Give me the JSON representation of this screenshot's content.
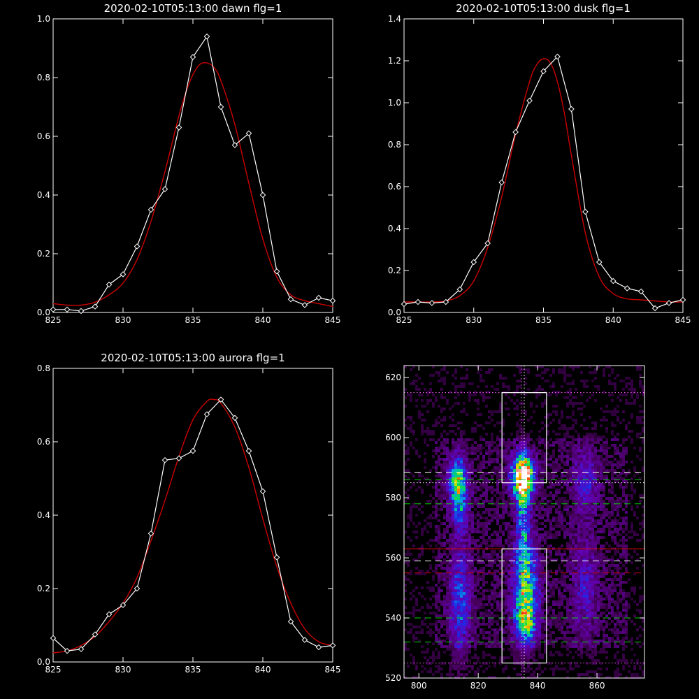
{
  "chart_data": [
    {
      "type": "line",
      "title": "2020-02-10T05:13:00 dawn flg=1",
      "xlim": [
        825,
        845
      ],
      "ylim": [
        0,
        1.0
      ],
      "xticks": [
        "825",
        "830",
        "835",
        "840",
        "845"
      ],
      "yticks": [
        "0.0",
        "0.2",
        "0.4",
        "0.6",
        "0.8",
        "1.0"
      ],
      "series": [
        {
          "color": "#ffffff",
          "marker": "diamond",
          "x": [
            825,
            826,
            827,
            828,
            829,
            830,
            831,
            832,
            833,
            834,
            835,
            836,
            837,
            838,
            839,
            840,
            841,
            842,
            843,
            844,
            845
          ],
          "y": [
            0.01,
            0.01,
            0.005,
            0.02,
            0.095,
            0.13,
            0.225,
            0.35,
            0.42,
            0.63,
            0.87,
            0.94,
            0.7,
            0.57,
            0.61,
            0.4,
            0.14,
            0.045,
            0.025,
            0.05,
            0.04
          ]
        },
        {
          "color": "#cc0000",
          "marker": "none",
          "smooth": true,
          "x": [
            825,
            826,
            827,
            828,
            829,
            830,
            831,
            832,
            833,
            834,
            834.5,
            835,
            835.5,
            836,
            836.5,
            837,
            838,
            839,
            840,
            841,
            842,
            843,
            844,
            845
          ],
          "y": [
            0.03,
            0.025,
            0.025,
            0.035,
            0.06,
            0.1,
            0.18,
            0.31,
            0.48,
            0.67,
            0.75,
            0.81,
            0.845,
            0.85,
            0.835,
            0.79,
            0.64,
            0.44,
            0.25,
            0.12,
            0.06,
            0.04,
            0.03,
            0.02
          ]
        }
      ]
    },
    {
      "type": "line",
      "title": "2020-02-10T05:13:00 dusk flg=1",
      "xlim": [
        825,
        845
      ],
      "ylim": [
        0,
        1.4
      ],
      "xticks": [
        "825",
        "830",
        "835",
        "840",
        "845"
      ],
      "yticks": [
        "0.0",
        "0.2",
        "0.4",
        "0.6",
        "0.8",
        "1.0",
        "1.2",
        "1.4"
      ],
      "series": [
        {
          "color": "#ffffff",
          "marker": "diamond",
          "x": [
            825,
            826,
            827,
            828,
            829,
            830,
            831,
            832,
            833,
            834,
            835,
            836,
            837,
            838,
            839,
            840,
            841,
            842,
            843,
            844,
            845
          ],
          "y": [
            0.04,
            0.05,
            0.045,
            0.05,
            0.11,
            0.24,
            0.33,
            0.62,
            0.86,
            1.01,
            1.15,
            1.22,
            0.97,
            0.48,
            0.24,
            0.15,
            0.115,
            0.1,
            0.02,
            0.045,
            0.06
          ]
        },
        {
          "color": "#cc0000",
          "marker": "none",
          "smooth": true,
          "x": [
            825,
            826,
            827,
            828,
            829,
            830,
            831,
            832,
            833,
            834,
            834.5,
            835,
            835.5,
            836,
            836.5,
            837,
            838,
            839,
            840,
            841,
            842,
            843,
            844,
            845
          ],
          "y": [
            0.05,
            0.05,
            0.05,
            0.055,
            0.08,
            0.15,
            0.31,
            0.55,
            0.85,
            1.1,
            1.18,
            1.21,
            1.19,
            1.1,
            0.95,
            0.75,
            0.38,
            0.17,
            0.09,
            0.065,
            0.06,
            0.055,
            0.05,
            0.05
          ]
        }
      ]
    },
    {
      "type": "line",
      "title": "2020-02-10T05:13:00 aurora flg=1",
      "xlim": [
        825,
        845
      ],
      "ylim": [
        0,
        0.8
      ],
      "xticks": [
        "825",
        "830",
        "835",
        "840",
        "845"
      ],
      "yticks": [
        "0.0",
        "0.2",
        "0.4",
        "0.6",
        "0.8"
      ],
      "series": [
        {
          "color": "#ffffff",
          "marker": "diamond",
          "x": [
            825,
            826,
            827,
            828,
            829,
            830,
            831,
            832,
            833,
            834,
            835,
            836,
            837,
            838,
            839,
            840,
            841,
            842,
            843,
            844,
            845
          ],
          "y": [
            0.065,
            0.03,
            0.035,
            0.075,
            0.13,
            0.155,
            0.2,
            0.35,
            0.55,
            0.555,
            0.575,
            0.675,
            0.715,
            0.665,
            0.575,
            0.465,
            0.285,
            0.11,
            0.06,
            0.04,
            0.045
          ]
        },
        {
          "color": "#cc0000",
          "marker": "none",
          "smooth": true,
          "x": [
            825,
            826,
            827,
            828,
            829,
            830,
            831,
            832,
            833,
            834,
            835,
            836,
            836.5,
            837,
            838,
            839,
            840,
            841,
            842,
            843,
            844,
            845
          ],
          "y": [
            0.025,
            0.03,
            0.045,
            0.07,
            0.11,
            0.16,
            0.23,
            0.33,
            0.44,
            0.56,
            0.66,
            0.71,
            0.715,
            0.705,
            0.64,
            0.53,
            0.39,
            0.26,
            0.16,
            0.09,
            0.055,
            0.045
          ]
        }
      ]
    },
    {
      "type": "heatmap",
      "title": "",
      "xlim": [
        795,
        876
      ],
      "ylim": [
        520,
        624
      ],
      "xticks": [
        "800",
        "820",
        "840",
        "860"
      ],
      "yticks": [
        "520",
        "540",
        "560",
        "580",
        "600",
        "620"
      ],
      "colormap": "rainbow (black-purple-blue-green-yellow-red-white)",
      "blobs": [
        {
          "x": 813,
          "y": 586,
          "sx": 2.2,
          "sy": 5.5,
          "v": 0.55
        },
        {
          "x": 814,
          "y": 576,
          "sx": 2.0,
          "sy": 6.0,
          "v": 0.3
        },
        {
          "x": 814,
          "y": 545,
          "sx": 2.5,
          "sy": 12.0,
          "v": 0.35
        },
        {
          "x": 835,
          "y": 587,
          "sx": 2.5,
          "sy": 5.0,
          "v": 1.0
        },
        {
          "x": 835,
          "y": 574,
          "sx": 1.5,
          "sy": 10.0,
          "v": 0.35
        },
        {
          "x": 836,
          "y": 550,
          "sx": 2.8,
          "sy": 11.0,
          "v": 0.6
        },
        {
          "x": 836,
          "y": 538,
          "sx": 2.5,
          "sy": 4.5,
          "v": 0.35
        },
        {
          "x": 856,
          "y": 586,
          "sx": 3.0,
          "sy": 7.0,
          "v": 0.25
        },
        {
          "x": 856,
          "y": 550,
          "sx": 3.0,
          "sy": 12.0,
          "v": 0.22
        }
      ],
      "boxes": [
        {
          "x0": 828,
          "x1": 843,
          "y0": 585,
          "y1": 615,
          "color": "#ffffff"
        },
        {
          "x0": 828,
          "x1": 843,
          "y0": 525,
          "y1": 563,
          "color": "#ffffff"
        }
      ],
      "hlines": [
        {
          "y": 615,
          "color": "#ff66ff",
          "style": "dotted"
        },
        {
          "y": 588.5,
          "color": "#ffffff",
          "style": "dashed"
        },
        {
          "y": 586,
          "color": "#00cc00",
          "style": "dashed"
        },
        {
          "y": 585,
          "color": "#ffffff",
          "style": "dotted"
        },
        {
          "y": 578,
          "color": "#00cc00",
          "style": "dashed"
        },
        {
          "y": 563,
          "color": "#ff66ff",
          "style": "dotted"
        },
        {
          "y": 563,
          "color": "#cc0000",
          "style": "solid"
        },
        {
          "y": 559,
          "color": "#ffffff",
          "style": "dashed"
        },
        {
          "y": 555,
          "color": "#cc0000",
          "style": "dashed"
        },
        {
          "y": 540,
          "color": "#00cc00",
          "style": "dashed"
        },
        {
          "y": 532,
          "color": "#00cc00",
          "style": "dashed"
        },
        {
          "y": 525,
          "color": "#ff66ff",
          "style": "dotted"
        }
      ],
      "vlines": [
        {
          "x": 834.5,
          "color": "#ff66ff",
          "style": "dotted"
        },
        {
          "x": 835.5,
          "color": "#ffffff",
          "style": "dotted"
        }
      ]
    }
  ]
}
